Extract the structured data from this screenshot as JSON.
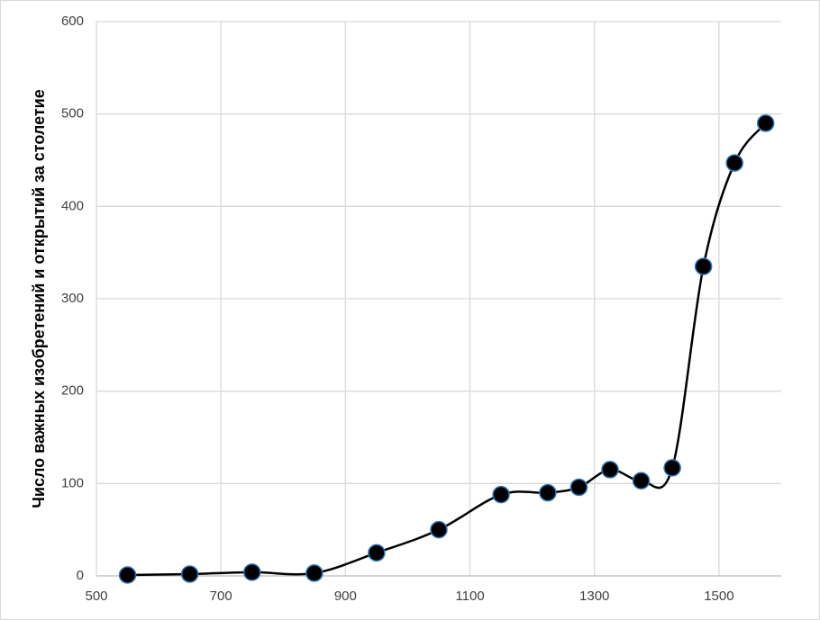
{
  "chart_data": {
    "type": "line",
    "y_label": "Число важных изобретений и открытий за  столетие",
    "x": [
      550,
      650,
      750,
      850,
      950,
      1050,
      1150,
      1225,
      1275,
      1325,
      1375,
      1425,
      1475,
      1525,
      1575
    ],
    "series": [
      {
        "color": "#000000",
        "values": [
          1,
          2,
          4,
          3,
          25,
          50,
          88,
          90,
          96,
          115,
          103,
          117,
          335,
          447,
          490
        ]
      }
    ],
    "xlim": [
      500,
      1600
    ],
    "xticks": [
      500,
      700,
      900,
      1100,
      1300,
      1500
    ],
    "ylim": [
      0,
      600
    ],
    "yticks": [
      0,
      100,
      200,
      300,
      400,
      500,
      600
    ],
    "grid": true,
    "smooth": true,
    "marker_edge_color": "#2e75b6"
  }
}
